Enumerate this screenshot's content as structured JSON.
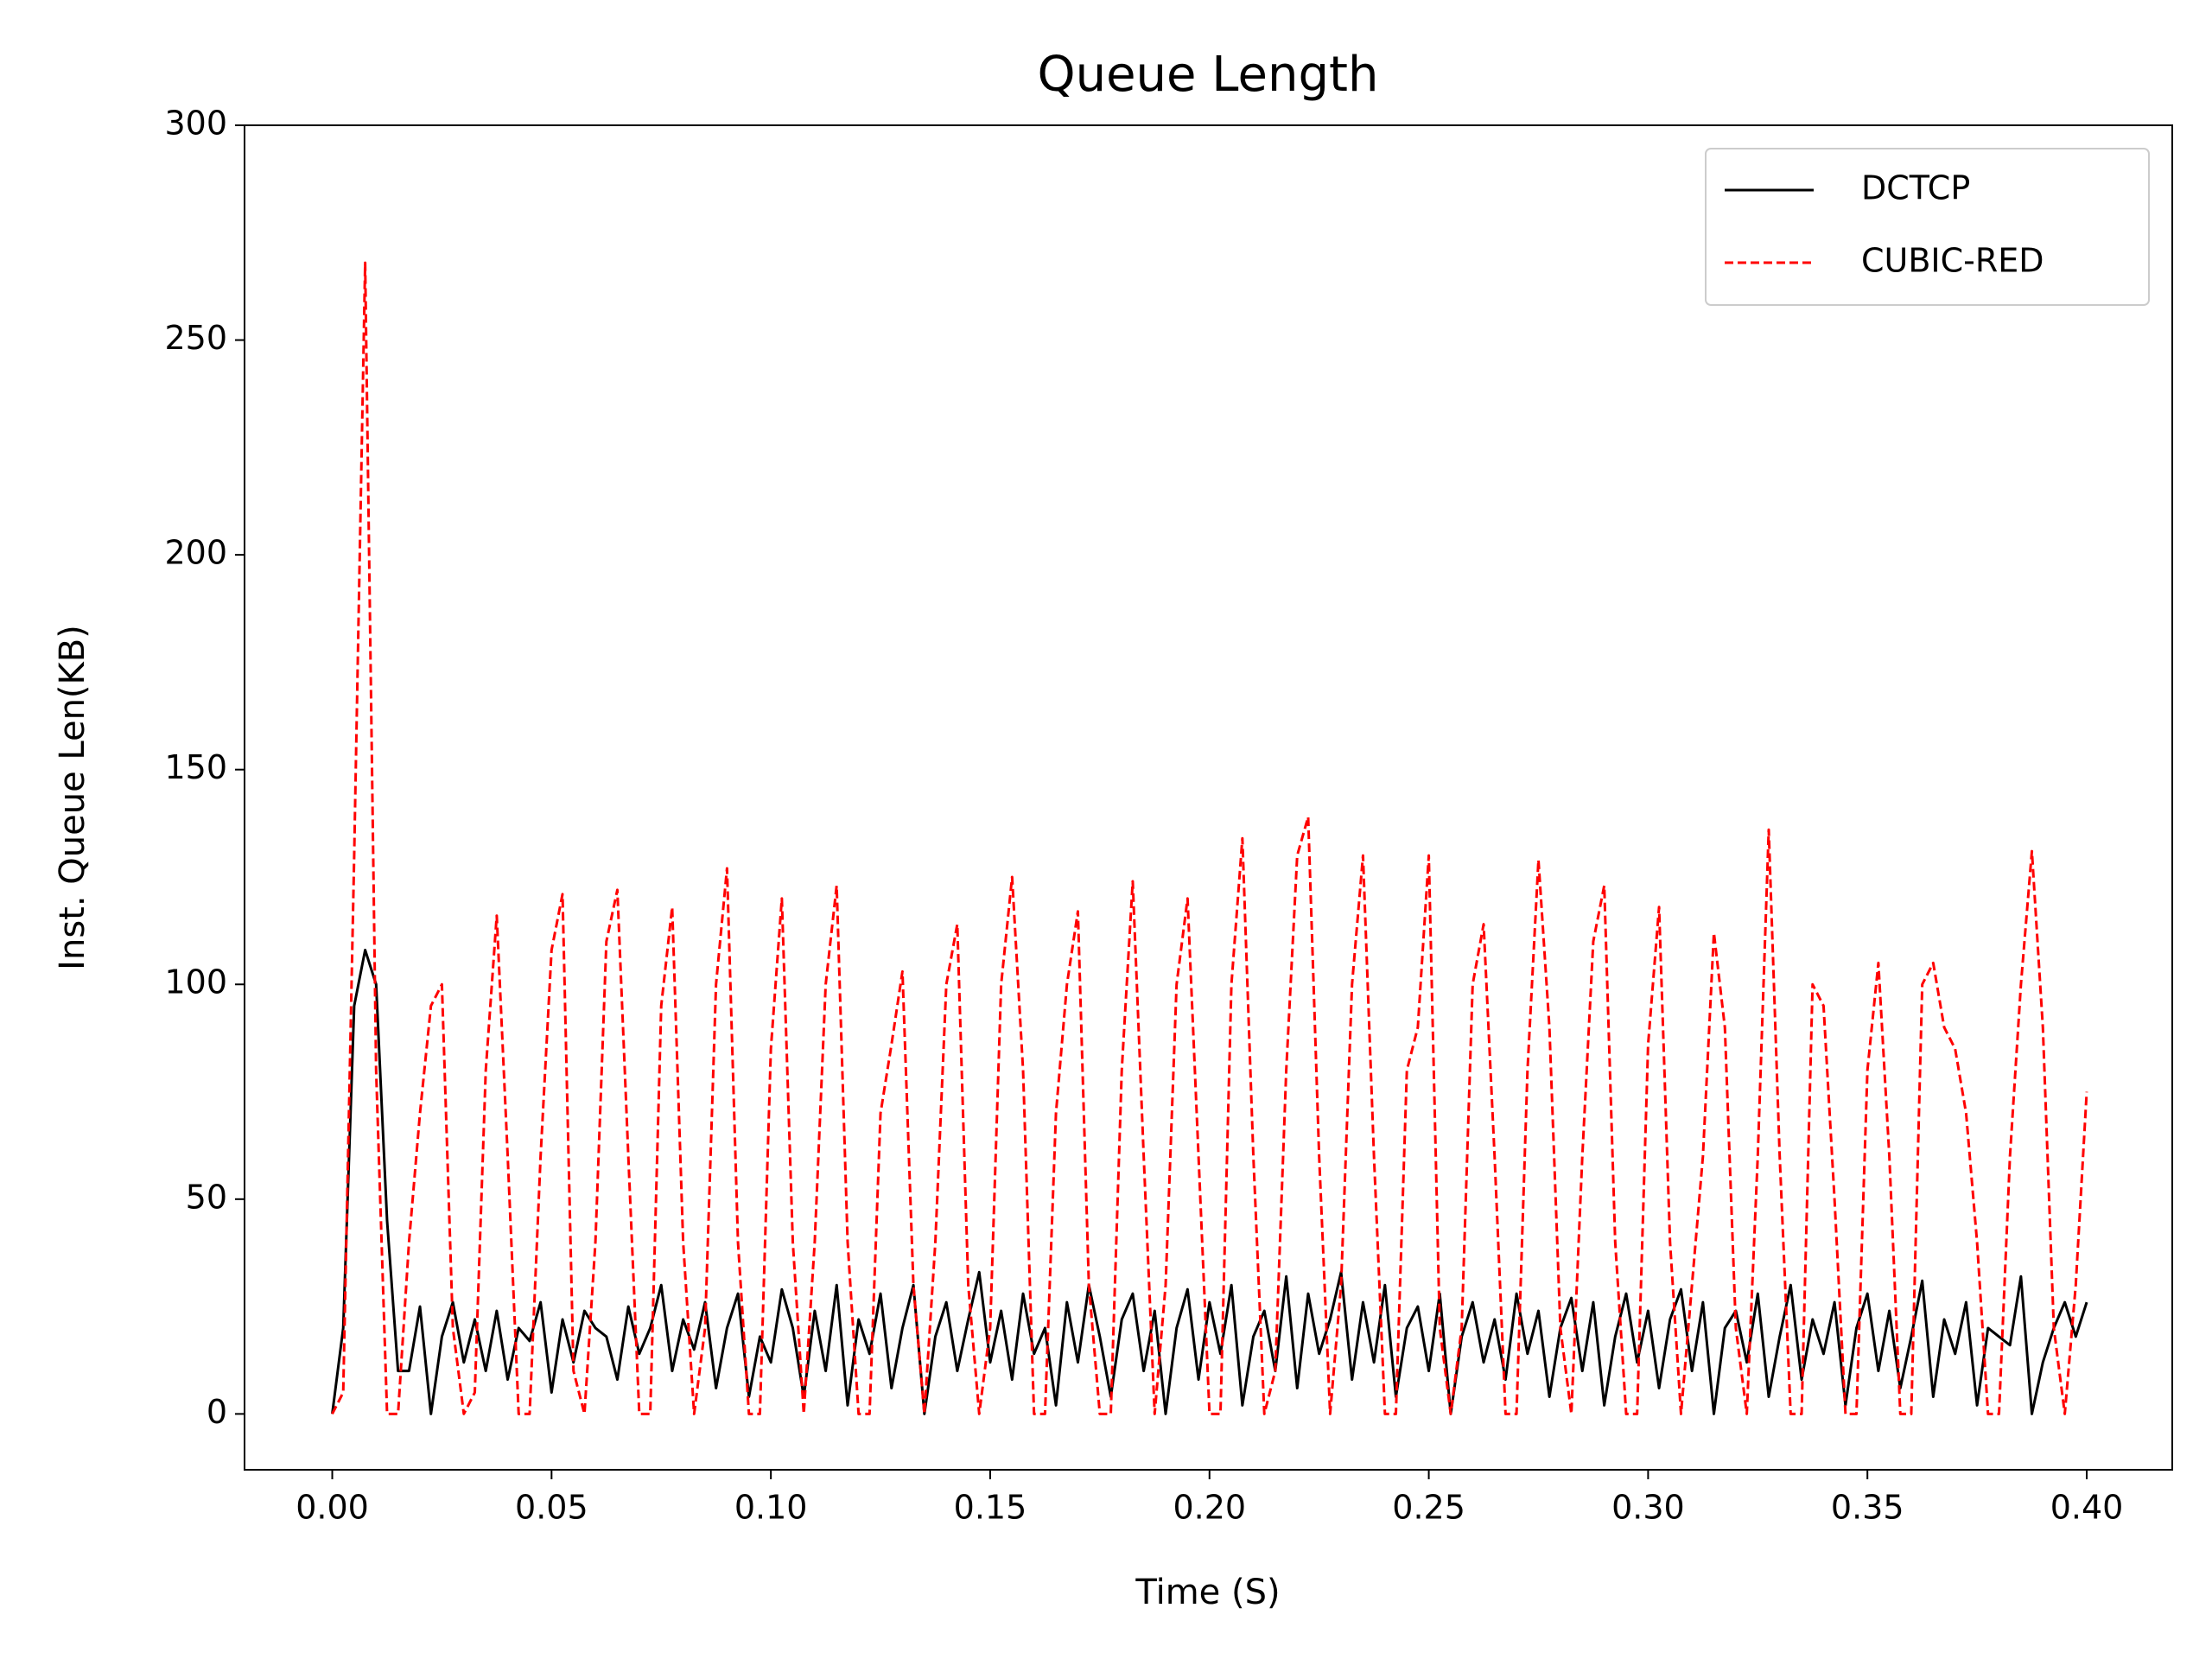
{
  "chart_data": {
    "type": "line",
    "title": "Queue Length",
    "x_label": "Time (S)",
    "y_label": "Inst. Queue Len(KB)",
    "x": [
      0,
      0.0025,
      0.005,
      0.0075,
      0.01,
      0.0125,
      0.015,
      0.0175,
      0.02,
      0.0225,
      0.025,
      0.0275,
      0.03,
      0.0325,
      0.035,
      0.0375,
      0.04,
      0.0425,
      0.045,
      0.0475,
      0.05,
      0.0525,
      0.055,
      0.0575,
      0.06,
      0.0625,
      0.065,
      0.0675,
      0.07,
      0.0725,
      0.075,
      0.0775,
      0.08,
      0.0825,
      0.085,
      0.0875,
      0.09,
      0.0925,
      0.095,
      0.0975,
      0.1,
      0.1025,
      0.105,
      0.1075,
      0.11,
      0.1125,
      0.115,
      0.1175,
      0.12,
      0.1225,
      0.125,
      0.1275,
      0.13,
      0.1325,
      0.135,
      0.1375,
      0.14,
      0.1425,
      0.145,
      0.1475,
      0.15,
      0.1525,
      0.155,
      0.1575,
      0.16,
      0.1625,
      0.165,
      0.1675,
      0.17,
      0.1725,
      0.175,
      0.1775,
      0.18,
      0.1825,
      0.185,
      0.1875,
      0.19,
      0.1925,
      0.195,
      0.1975,
      0.2,
      0.2025,
      0.205,
      0.2075,
      0.21,
      0.2125,
      0.215,
      0.2175,
      0.22,
      0.2225,
      0.225,
      0.2275,
      0.23,
      0.2325,
      0.235,
      0.2375,
      0.24,
      0.2425,
      0.245,
      0.2475,
      0.25,
      0.2525,
      0.255,
      0.2575,
      0.26,
      0.2625,
      0.265,
      0.2675,
      0.27,
      0.2725,
      0.275,
      0.2775,
      0.28,
      0.2825,
      0.285,
      0.2875,
      0.29,
      0.2925,
      0.295,
      0.2975,
      0.3,
      0.3025,
      0.305,
      0.3075,
      0.31,
      0.3125,
      0.315,
      0.3175,
      0.32,
      0.3225,
      0.325,
      0.3275,
      0.33,
      0.3325,
      0.335,
      0.3375,
      0.34,
      0.3425,
      0.345,
      0.3475,
      0.35,
      0.3525,
      0.355,
      0.3575,
      0.36,
      0.3625,
      0.365,
      0.3675,
      0.37,
      0.3725,
      0.375,
      0.3775,
      0.38,
      0.3825,
      0.385,
      0.3875,
      0.39,
      0.3925,
      0.395,
      0.3975,
      0.4
    ],
    "series": [
      {
        "name": "DCTCP",
        "color": "#000000",
        "dash": false,
        "values": [
          0,
          20,
          95,
          108,
          100,
          45,
          10,
          10,
          25,
          0,
          18,
          26,
          12,
          22,
          10,
          24,
          8,
          20,
          17,
          26,
          5,
          22,
          12,
          24,
          20,
          18,
          8,
          25,
          14,
          20,
          30,
          10,
          22,
          15,
          26,
          6,
          20,
          28,
          4,
          18,
          12,
          29,
          20,
          4,
          24,
          10,
          30,
          2,
          22,
          14,
          28,
          6,
          20,
          30,
          0,
          18,
          26,
          10,
          22,
          33,
          12,
          24,
          8,
          28,
          14,
          20,
          2,
          26,
          12,
          30,
          18,
          4,
          22,
          28,
          10,
          24,
          0,
          20,
          29,
          8,
          26,
          14,
          30,
          2,
          18,
          24,
          10,
          32,
          6,
          28,
          14,
          22,
          33,
          8,
          26,
          12,
          30,
          4,
          20,
          25,
          10,
          28,
          0,
          18,
          26,
          12,
          22,
          8,
          28,
          14,
          24,
          4,
          20,
          27,
          10,
          26,
          2,
          18,
          28,
          12,
          24,
          6,
          22,
          29,
          10,
          26,
          0,
          20,
          24,
          12,
          28,
          4,
          18,
          30,
          8,
          22,
          14,
          26,
          2,
          20,
          28,
          10,
          24,
          6,
          18,
          31,
          4,
          22,
          14,
          26,
          2,
          20,
          18,
          16,
          32,
          0,
          12,
          20,
          26,
          18,
          26
        ]
      },
      {
        "name": "CUBIC-RED",
        "color": "#ff0000",
        "dash": true,
        "values": [
          0,
          5,
          130,
          268,
          80,
          0,
          0,
          40,
          70,
          95,
          100,
          20,
          0,
          5,
          80,
          116,
          60,
          0,
          0,
          60,
          108,
          121,
          10,
          0,
          40,
          110,
          122,
          60,
          0,
          0,
          95,
          118,
          40,
          0,
          20,
          100,
          127,
          40,
          0,
          0,
          85,
          120,
          40,
          0,
          40,
          100,
          123,
          40,
          0,
          0,
          70,
          86,
          103,
          30,
          0,
          40,
          100,
          114,
          30,
          0,
          20,
          100,
          125,
          80,
          0,
          0,
          70,
          100,
          117,
          30,
          0,
          0,
          80,
          124,
          60,
          0,
          30,
          100,
          120,
          60,
          0,
          0,
          100,
          134,
          60,
          0,
          10,
          80,
          130,
          139,
          60,
          0,
          30,
          100,
          130,
          60,
          0,
          0,
          80,
          90,
          130,
          20,
          0,
          20,
          100,
          114,
          60,
          0,
          0,
          80,
          129,
          90,
          20,
          0,
          60,
          110,
          123,
          40,
          0,
          0,
          86,
          118,
          40,
          0,
          30,
          60,
          112,
          90,
          20,
          0,
          60,
          136,
          60,
          0,
          0,
          100,
          95,
          50,
          0,
          0,
          80,
          105,
          60,
          0,
          0,
          100,
          105,
          90,
          85,
          70,
          40,
          0,
          0,
          60,
          100,
          131,
          90,
          20,
          0,
          30,
          75
        ]
      }
    ],
    "xlim": [
      -0.02,
      0.4195
    ],
    "ylim": [
      -13,
      300
    ],
    "xticks": [
      {
        "value": 0,
        "label": "0.00"
      },
      0.05,
      {
        "value": 0.1,
        "label": "0.10"
      },
      0.15,
      {
        "value": 0.2,
        "label": "0.20"
      },
      0.25,
      {
        "value": 0.3,
        "label": "0.30"
      },
      0.35,
      {
        "value": 0.4,
        "label": "0.40"
      }
    ],
    "yticks": [
      0,
      50,
      100,
      150,
      200,
      250,
      300
    ],
    "legend": "upper right"
  }
}
